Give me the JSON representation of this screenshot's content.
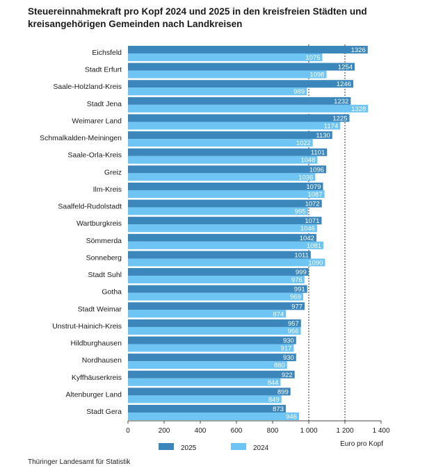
{
  "title": "Steuereinnahmekraft pro Kopf 2024 und 2025 in den kreisfreien Städten und kreisangehörigen Gemeinden nach Landkreisen",
  "source": "Thüringer Landesamt für Statistik",
  "chart_data": {
    "type": "bar",
    "orientation": "horizontal",
    "title": "Steuereinnahmekraft pro Kopf 2024 und 2025 in den kreisfreien Städten und kreisangehörigen Gemeinden nach Landkreisen",
    "xlabel": "Euro pro Kopf",
    "ylabel": "",
    "xlim": [
      0,
      1400
    ],
    "xticks": [
      0,
      200,
      400,
      600,
      800,
      1000,
      1200,
      1400
    ],
    "xtick_labels": [
      "0",
      "200",
      "400",
      "600",
      "800",
      "1 000",
      "1 200",
      "1 400"
    ],
    "reference_lines": [
      1000,
      1200
    ],
    "grid": false,
    "legend_position": "bottom",
    "categories": [
      "Eichsfeld",
      "Stadt Erfurt",
      "Saale-Holzland-Kreis",
      "Stadt Jena",
      "Weimarer Land",
      "Schmalkalden-Meiningen",
      "Saale-Orla-Kreis",
      "Greiz",
      "Ilm-Kreis",
      "Saalfeld-Rudolstadt",
      "Wartburgkreis",
      "Sömmerda",
      "Sonneberg",
      "Stadt Suhl",
      "Gotha",
      "Stadt Weimar",
      "Unstrut-Hainich-Kreis",
      "Hildburghausen",
      "Nordhausen",
      "Kyffhäuserkreis",
      "Altenburger Land",
      "Stadt Gera"
    ],
    "series": [
      {
        "name": "2025",
        "color": "#3b86ba",
        "values": [
          1326,
          1254,
          1246,
          1232,
          1225,
          1130,
          1101,
          1096,
          1079,
          1072,
          1071,
          1042,
          1011,
          999,
          991,
          977,
          957,
          930,
          930,
          922,
          899,
          873
        ]
      },
      {
        "name": "2024",
        "color": "#6ec4f2",
        "values": [
          1075,
          1098,
          989,
          1328,
          1174,
          1022,
          1048,
          1036,
          1087,
          995,
          1046,
          1081,
          1090,
          976,
          969,
          874,
          956,
          917,
          880,
          844,
          849,
          946
        ]
      }
    ]
  }
}
